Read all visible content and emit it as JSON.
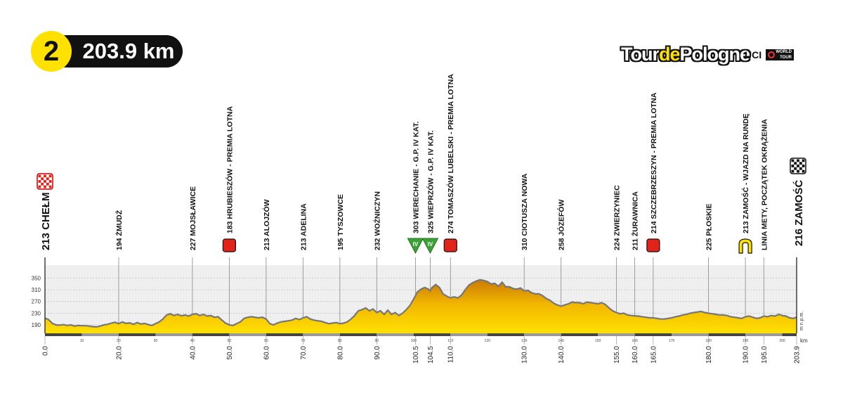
{
  "header": {
    "stage_number": "2",
    "distance": "203.9 km"
  },
  "logo": {
    "tour_prefix": "Tour",
    "tour_de": "de",
    "tour_suffix": "Pologne",
    "uci": "UCI",
    "world_tour": "WORLD TOUR"
  },
  "colors": {
    "profile_yellow": "#ffe100",
    "profile_orange": "#d98c00",
    "sprint_red": "#e2231a",
    "climb_green": "#3aa335",
    "plot_bg": "#efefef"
  },
  "chart_data": {
    "type": "area",
    "title": "",
    "xlabel": "",
    "ylabel": "m n.p.m.",
    "xunit": "km",
    "xlim": [
      0,
      203.9
    ],
    "ylim": [
      160,
      360
    ],
    "grid": true,
    "y_ticks": [
      190,
      230,
      270,
      310,
      350
    ],
    "minor_x_ticks": [
      10,
      20,
      30,
      40,
      50,
      60,
      70,
      80,
      90,
      100,
      110,
      120,
      130,
      140,
      150,
      160,
      170,
      180,
      190,
      200
    ],
    "major_x_ticks": [
      "0.0",
      "20.0",
      "40.0",
      "50.0",
      "60.0",
      "70.0",
      "80.0",
      "90.0",
      "100.5",
      "104.5",
      "110.0",
      "130.0",
      "140.0",
      "155.0",
      "160.0",
      "165.0",
      "180.0",
      "190.0",
      "195.0",
      "203.9"
    ],
    "start_label": "213 CHEŁM",
    "finish_label": "216 ZAMOŚĆ",
    "profile": [
      [
        0,
        213
      ],
      [
        1,
        208
      ],
      [
        2,
        195
      ],
      [
        3,
        190
      ],
      [
        4,
        189
      ],
      [
        5,
        191
      ],
      [
        6,
        188
      ],
      [
        7,
        190
      ],
      [
        8,
        186
      ],
      [
        9,
        188
      ],
      [
        10,
        187
      ],
      [
        11,
        187
      ],
      [
        12,
        186
      ],
      [
        13,
        184
      ],
      [
        14,
        183
      ],
      [
        15,
        186
      ],
      [
        16,
        190
      ],
      [
        17,
        192
      ],
      [
        18,
        196
      ],
      [
        19,
        199
      ],
      [
        20,
        194
      ],
      [
        21,
        200
      ],
      [
        22,
        195
      ],
      [
        23,
        197
      ],
      [
        24,
        192
      ],
      [
        25,
        198
      ],
      [
        26,
        193
      ],
      [
        27,
        195
      ],
      [
        28,
        191
      ],
      [
        29,
        188
      ],
      [
        30,
        194
      ],
      [
        31,
        200
      ],
      [
        32,
        210
      ],
      [
        33,
        224
      ],
      [
        34,
        228
      ],
      [
        35,
        222
      ],
      [
        36,
        226
      ],
      [
        37,
        221
      ],
      [
        38,
        224
      ],
      [
        39,
        220
      ],
      [
        40,
        226
      ],
      [
        41,
        228
      ],
      [
        42,
        222
      ],
      [
        43,
        226
      ],
      [
        44,
        220
      ],
      [
        45,
        222
      ],
      [
        46,
        216
      ],
      [
        47,
        218
      ],
      [
        48,
        206
      ],
      [
        49,
        196
      ],
      [
        50,
        190
      ],
      [
        51,
        188
      ],
      [
        52,
        194
      ],
      [
        53,
        200
      ],
      [
        54,
        212
      ],
      [
        55,
        216
      ],
      [
        56,
        218
      ],
      [
        57,
        216
      ],
      [
        58,
        214
      ],
      [
        59,
        216
      ],
      [
        60,
        210
      ],
      [
        61,
        194
      ],
      [
        62,
        190
      ],
      [
        63,
        196
      ],
      [
        64,
        200
      ],
      [
        65,
        202
      ],
      [
        66,
        204
      ],
      [
        67,
        206
      ],
      [
        68,
        212
      ],
      [
        69,
        208
      ],
      [
        70,
        214
      ],
      [
        71,
        218
      ],
      [
        72,
        210
      ],
      [
        73,
        206
      ],
      [
        74,
        204
      ],
      [
        75,
        202
      ],
      [
        76,
        198
      ],
      [
        77,
        194
      ],
      [
        78,
        196
      ],
      [
        79,
        198
      ],
      [
        80,
        194
      ],
      [
        81,
        196
      ],
      [
        82,
        200
      ],
      [
        83,
        210
      ],
      [
        84,
        222
      ],
      [
        85,
        238
      ],
      [
        86,
        242
      ],
      [
        87,
        248
      ],
      [
        88,
        238
      ],
      [
        89,
        244
      ],
      [
        90,
        232
      ],
      [
        91,
        238
      ],
      [
        92,
        226
      ],
      [
        93,
        240
      ],
      [
        94,
        226
      ],
      [
        95,
        232
      ],
      [
        96,
        222
      ],
      [
        97,
        230
      ],
      [
        98,
        242
      ],
      [
        99,
        256
      ],
      [
        100,
        278
      ],
      [
        100.5,
        290
      ],
      [
        101,
        302
      ],
      [
        102,
        312
      ],
      [
        103,
        318
      ],
      [
        104,
        312
      ],
      [
        104.5,
        306
      ],
      [
        105,
        318
      ],
      [
        106,
        328
      ],
      [
        107,
        318
      ],
      [
        108,
        296
      ],
      [
        109,
        288
      ],
      [
        110,
        282
      ],
      [
        111,
        286
      ],
      [
        112,
        282
      ],
      [
        113,
        292
      ],
      [
        114,
        310
      ],
      [
        115,
        326
      ],
      [
        116,
        334
      ],
      [
        117,
        340
      ],
      [
        118,
        344
      ],
      [
        119,
        342
      ],
      [
        120,
        338
      ],
      [
        121,
        330
      ],
      [
        122,
        332
      ],
      [
        123,
        322
      ],
      [
        124,
        336
      ],
      [
        125,
        320
      ],
      [
        126,
        320
      ],
      [
        127,
        314
      ],
      [
        128,
        312
      ],
      [
        129,
        316
      ],
      [
        130,
        306
      ],
      [
        131,
        308
      ],
      [
        132,
        300
      ],
      [
        133,
        296
      ],
      [
        134,
        296
      ],
      [
        135,
        290
      ],
      [
        136,
        280
      ],
      [
        137,
        274
      ],
      [
        138,
        264
      ],
      [
        139,
        258
      ],
      [
        140,
        254
      ],
      [
        141,
        258
      ],
      [
        142,
        262
      ],
      [
        143,
        268
      ],
      [
        144,
        266
      ],
      [
        145,
        266
      ],
      [
        146,
        262
      ],
      [
        147,
        268
      ],
      [
        148,
        266
      ],
      [
        149,
        264
      ],
      [
        150,
        262
      ],
      [
        151,
        266
      ],
      [
        152,
        260
      ],
      [
        153,
        248
      ],
      [
        154,
        238
      ],
      [
        155,
        232
      ],
      [
        156,
        228
      ],
      [
        157,
        230
      ],
      [
        158,
        224
      ],
      [
        159,
        222
      ],
      [
        160,
        221
      ],
      [
        161,
        220
      ],
      [
        162,
        218
      ],
      [
        163,
        216
      ],
      [
        164,
        214
      ],
      [
        165,
        214
      ],
      [
        166,
        212
      ],
      [
        167,
        210
      ],
      [
        168,
        210
      ],
      [
        169,
        212
      ],
      [
        170,
        214
      ],
      [
        171,
        218
      ],
      [
        172,
        220
      ],
      [
        173,
        224
      ],
      [
        174,
        226
      ],
      [
        175,
        230
      ],
      [
        176,
        232
      ],
      [
        177,
        234
      ],
      [
        178,
        236
      ],
      [
        179,
        232
      ],
      [
        180,
        230
      ],
      [
        181,
        228
      ],
      [
        182,
        226
      ],
      [
        183,
        224
      ],
      [
        184,
        224
      ],
      [
        185,
        222
      ],
      [
        186,
        218
      ],
      [
        187,
        216
      ],
      [
        188,
        214
      ],
      [
        189,
        212
      ],
      [
        190,
        218
      ],
      [
        191,
        220
      ],
      [
        192,
        216
      ],
      [
        193,
        212
      ],
      [
        194,
        214
      ],
      [
        195,
        220
      ],
      [
        196,
        218
      ],
      [
        197,
        222
      ],
      [
        198,
        220
      ],
      [
        199,
        226
      ],
      [
        200,
        222
      ],
      [
        201,
        220
      ],
      [
        202,
        214
      ],
      [
        203,
        212
      ],
      [
        203.9,
        216
      ]
    ],
    "markers": [
      {
        "km": 20.0,
        "label": "194 ŻMUDŹ",
        "symbol": "none"
      },
      {
        "km": 40.0,
        "label": "227 MOJSŁAWICE",
        "symbol": "none"
      },
      {
        "km": 50.0,
        "label": "183 HRUBIESZÓW - PREMIA LOTNA",
        "symbol": "sprint"
      },
      {
        "km": 60.0,
        "label": "213 ALOJZÓW",
        "symbol": "none"
      },
      {
        "km": 70.0,
        "label": "213 ADELINA",
        "symbol": "none"
      },
      {
        "km": 80.0,
        "label": "195 TYSZOWCE",
        "symbol": "none"
      },
      {
        "km": 90.0,
        "label": "232 WOŹNICZYN",
        "symbol": "none"
      },
      {
        "km": 100.5,
        "label": "303 WERECHANIE - G.P. IV KAT.",
        "symbol": "climb"
      },
      {
        "km": 104.5,
        "label": "325 WIEPRZÓW - G.P. IV KAT.",
        "symbol": "climb"
      },
      {
        "km": 110.0,
        "label": "274 TOMASZÓW LUBELSKI - PREMIA LOTNA",
        "symbol": "sprint"
      },
      {
        "km": 130.0,
        "label": "310 CIOTUSZA NOWA",
        "symbol": "none"
      },
      {
        "km": 140.0,
        "label": "258 JÓZEFÓW",
        "symbol": "none"
      },
      {
        "km": 155.0,
        "label": "224 ZWIERZYNIEC",
        "symbol": "none"
      },
      {
        "km": 160.0,
        "label": "211 ŻURAWNICA",
        "symbol": "none"
      },
      {
        "km": 165.0,
        "label": "214 SZCZEBRZESZYN - PREMIA LOTNA",
        "symbol": "sprint"
      },
      {
        "km": 180.0,
        "label": "225 PŁOSKIE",
        "symbol": "none"
      },
      {
        "km": 190.0,
        "label": "213 ZAMOŚĆ - WJAZD NA RUNDĘ",
        "symbol": "loop"
      },
      {
        "km": 195.0,
        "label": "LINIA METY, POCZĄTEK OKRĄŻENIA",
        "symbol": "none"
      }
    ],
    "climb_symbol_text": "IV"
  }
}
